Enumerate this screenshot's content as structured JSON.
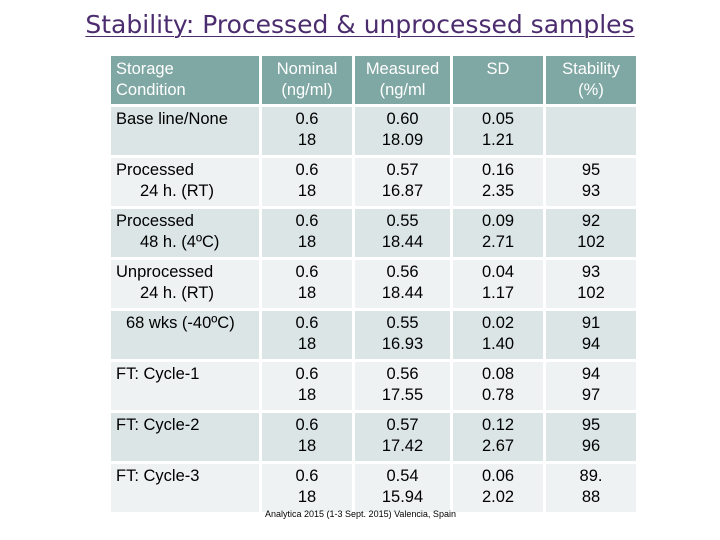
{
  "title": "Stability: Processed & unprocessed samples",
  "table": {
    "headers": {
      "condition": [
        "Storage",
        "Condition"
      ],
      "nominal": [
        "Nominal",
        "(ng/ml)"
      ],
      "measured": [
        "Measured",
        "(ng/ml"
      ],
      "sd": [
        "SD",
        ""
      ],
      "stability": [
        "Stability",
        "(%)"
      ]
    },
    "rows": [
      {
        "condition": [
          "Base line/None",
          ""
        ],
        "nominal": [
          "0.6",
          "18"
        ],
        "measured": [
          "0.60",
          "18.09"
        ],
        "sd": [
          "0.05",
          "1.21"
        ],
        "stability": [
          "",
          ""
        ]
      },
      {
        "condition": [
          "Processed",
          "24 h. (RT)"
        ],
        "nominal": [
          "0.6",
          "18"
        ],
        "measured": [
          "0.57",
          "16.87"
        ],
        "sd": [
          "0.16",
          "2.35"
        ],
        "stability": [
          "95",
          "93"
        ]
      },
      {
        "condition": [
          "Processed",
          "48 h. (4ºC)"
        ],
        "nominal": [
          "0.6",
          "18"
        ],
        "measured": [
          "0.55",
          "18.44"
        ],
        "sd": [
          "0.09",
          "2.71"
        ],
        "stability": [
          "92",
          "102"
        ]
      },
      {
        "condition": [
          "Unprocessed",
          "24 h. (RT)"
        ],
        "nominal": [
          "0.6",
          "18"
        ],
        "measured": [
          "0.56",
          "18.44"
        ],
        "sd": [
          "0.04",
          "1.17"
        ],
        "stability": [
          "93",
          "102"
        ]
      },
      {
        "condition": [
          "68 wks (-40ºC)",
          ""
        ],
        "nominal": [
          "0.6",
          "18"
        ],
        "measured": [
          "0.55",
          "16.93"
        ],
        "sd": [
          "0.02",
          "1.40"
        ],
        "stability": [
          "91",
          "94"
        ]
      },
      {
        "condition": [
          "FT: Cycle-1",
          ""
        ],
        "nominal": [
          "0.6",
          "18"
        ],
        "measured": [
          "0.56",
          "17.55"
        ],
        "sd": [
          "0.08",
          "0.78"
        ],
        "stability": [
          "94",
          "97"
        ]
      },
      {
        "condition": [
          "FT: Cycle-2",
          ""
        ],
        "nominal": [
          "0.6",
          "18"
        ],
        "measured": [
          "0.57",
          "17.42"
        ],
        "sd": [
          "0.12",
          "2.67"
        ],
        "stability": [
          "95",
          "96"
        ]
      },
      {
        "condition": [
          "FT: Cycle-3",
          ""
        ],
        "nominal": [
          "0.6",
          "18"
        ],
        "measured": [
          "0.54",
          "15.94"
        ],
        "sd": [
          "0.06",
          "2.02"
        ],
        "stability": [
          "89.",
          "88"
        ]
      }
    ]
  },
  "footer": "Analytica 2015 (1-3 Sept. 2015) Valencia, Spain"
}
